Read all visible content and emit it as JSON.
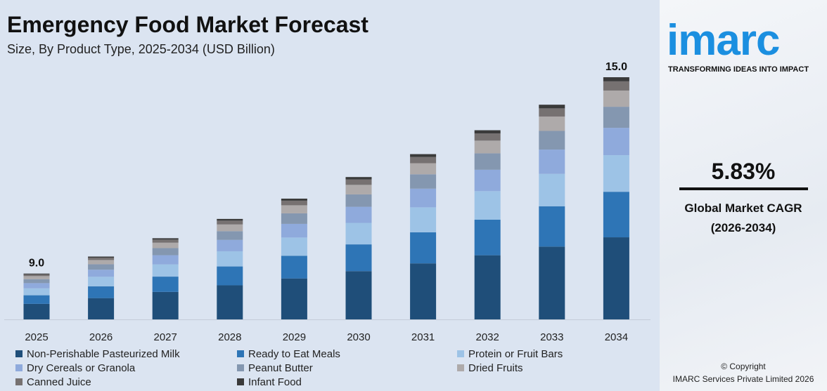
{
  "header": {
    "title": "Emergency Food Market Forecast",
    "subtitle": "Size, By Product Type, 2025-2034 (USD Billion)"
  },
  "sidebar": {
    "logo": "imarc",
    "tagline": "TRANSFORMING IDEAS INTO IMPACT",
    "cagr_value": "5.83%",
    "cagr_label": "Global Market CAGR",
    "cagr_period": "(2026-2034)",
    "copyright": "© Copyright",
    "company": "IMARC Services Private Limited 2026"
  },
  "chart_data": {
    "type": "bar",
    "stacked": true,
    "title": "Emergency Food Market Forecast",
    "subtitle": "Size, By Product Type, 2025-2034 (USD Billion)",
    "categories": [
      "2025",
      "2026",
      "2027",
      "2028",
      "2029",
      "2030",
      "2031",
      "2032",
      "2033",
      "2034"
    ],
    "totals": [
      9.0,
      9.52,
      10.08,
      10.67,
      11.29,
      11.95,
      12.65,
      13.38,
      14.16,
      15.0
    ],
    "total_labels": {
      "2025": "9.0",
      "2034": "15.0"
    },
    "shares": [
      0.339,
      0.188,
      0.151,
      0.113,
      0.087,
      0.067,
      0.038,
      0.017
    ],
    "series": [
      {
        "name": "Non-Perishable Pasteurized Milk",
        "color": "#1f4e79"
      },
      {
        "name": "Ready to Eat Meals",
        "color": "#2e75b6"
      },
      {
        "name": "Protein or Fruit Bars",
        "color": "#9dc3e6"
      },
      {
        "name": "Dry Cereals or Granola",
        "color": "#8faadc"
      },
      {
        "name": "Peanut Butter",
        "color": "#8497b0"
      },
      {
        "name": "Dried Fruits",
        "color": "#aeaaaa"
      },
      {
        "name": "Canned Juice",
        "color": "#767171"
      },
      {
        "name": "Infant Food",
        "color": "#3a3a3a"
      }
    ],
    "ylim": [
      7.6,
      15
    ],
    "legend": "bottom",
    "grid": false
  }
}
